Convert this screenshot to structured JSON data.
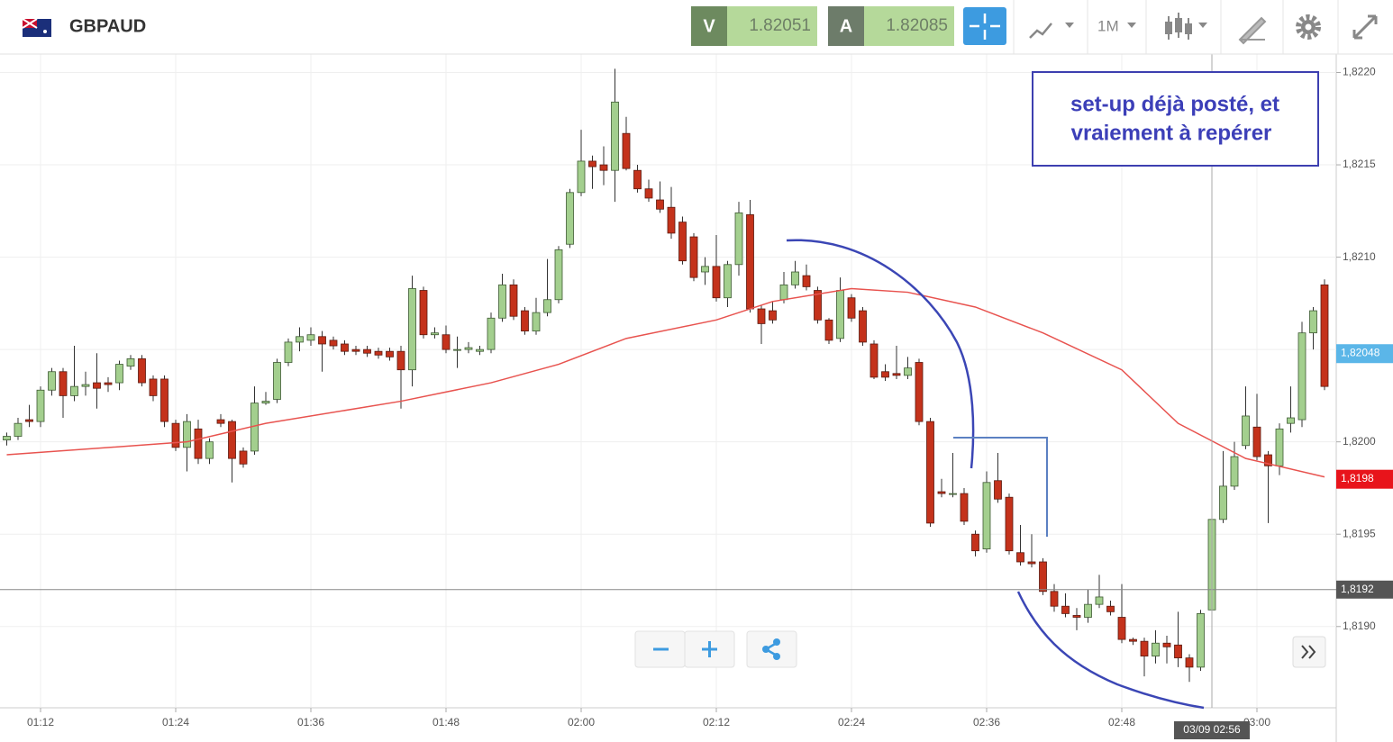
{
  "toolbar": {
    "symbol": "GBPAUD",
    "sell_label": "V",
    "sell_price": "1.82051",
    "buy_label": "A",
    "buy_price": "1.82085",
    "timeframe": "1M"
  },
  "chart_data": {
    "type": "candlestick",
    "categories": [
      "01:09",
      "01:10",
      "01:11",
      "01:12",
      "01:13",
      "01:14",
      "01:15",
      "01:16",
      "01:17",
      "01:18",
      "01:19",
      "01:20",
      "01:21",
      "01:22",
      "01:23",
      "01:24",
      "01:25",
      "01:26",
      "01:27",
      "01:28",
      "01:29",
      "01:30",
      "01:31",
      "01:32",
      "01:33",
      "01:34",
      "01:35",
      "01:36",
      "01:37",
      "01:38",
      "01:39",
      "01:40",
      "01:41",
      "01:42",
      "01:43",
      "01:44",
      "01:45",
      "01:46",
      "01:47",
      "01:48",
      "01:49",
      "01:50",
      "01:51",
      "01:52",
      "01:53",
      "01:54",
      "01:55",
      "01:56",
      "01:57",
      "01:58",
      "01:59",
      "02:00",
      "02:01",
      "02:02",
      "02:03",
      "02:04",
      "02:05",
      "02:06",
      "02:07",
      "02:08",
      "02:09",
      "02:10",
      "02:11",
      "02:12",
      "02:13",
      "02:14",
      "02:15",
      "02:16",
      "02:17",
      "02:18",
      "02:19",
      "02:20",
      "02:21",
      "02:22",
      "02:23",
      "02:24",
      "02:25",
      "02:26",
      "02:27",
      "02:28",
      "02:29",
      "02:30",
      "02:31",
      "02:32",
      "02:33",
      "02:34",
      "02:35",
      "02:36",
      "02:37",
      "02:38",
      "02:39",
      "02:40",
      "02:41",
      "02:42",
      "02:43",
      "02:44",
      "02:45",
      "02:46",
      "02:47",
      "02:48",
      "02:49",
      "02:50",
      "02:51",
      "02:52",
      "02:53",
      "02:54",
      "02:55",
      "02:56",
      "02:57",
      "02:58",
      "02:59",
      "03:00",
      "03:01",
      "03:02",
      "03:03",
      "03:04",
      "03:05",
      "03:06"
    ],
    "open": [
      1.82001,
      1.82003,
      1.82012,
      1.82011,
      1.82028,
      1.82038,
      1.82025,
      1.8203,
      1.82032,
      1.82032,
      1.82032,
      1.82041,
      1.82045,
      1.82034,
      1.82034,
      1.8201,
      1.81997,
      1.82007,
      1.81991,
      1.82012,
      1.82011,
      1.81995,
      1.81995,
      1.82021,
      1.82023,
      1.82043,
      1.82054,
      1.82055,
      1.82057,
      1.82055,
      1.82053,
      1.8205,
      1.8205,
      1.82049,
      1.82049,
      1.82049,
      1.82039,
      1.82082,
      1.82058,
      1.82058,
      1.8205,
      1.8205,
      1.82049,
      1.8205,
      1.82067,
      1.82085,
      1.82071,
      1.8206,
      1.8207,
      1.82077,
      1.82107,
      1.82135,
      1.82152,
      1.8215,
      1.82147,
      1.82167,
      1.82147,
      1.82137,
      1.82131,
      1.82127,
      1.82119,
      1.82111,
      1.82092,
      1.82095,
      1.82078,
      1.82096,
      1.82123,
      1.82072,
      1.82071,
      1.82077,
      1.82085,
      1.8209,
      1.82082,
      1.82066,
      1.82056,
      1.82078,
      1.82071,
      1.82053,
      1.82038,
      1.82037,
      1.82036,
      1.82043,
      1.82011,
      1.81973,
      1.81972,
      1.81972,
      1.8195,
      1.81942,
      1.81979,
      1.8197,
      1.8194,
      1.81935,
      1.81935,
      1.81919,
      1.81911,
      1.81906,
      1.81905,
      1.81912,
      1.81911,
      1.81905,
      1.81893,
      1.81892,
      1.81884,
      1.81891,
      1.8189,
      1.81883,
      1.81878,
      1.81909,
      1.81958,
      1.81976,
      1.81998,
      1.82008,
      1.81993,
      1.81987,
      1.8201,
      1.82012,
      1.82059,
      1.82085
    ],
    "high": [
      1.82005,
      1.82013,
      1.8202,
      1.8203,
      1.8204,
      1.8204,
      1.82052,
      1.82038,
      1.82048,
      1.82035,
      1.82044,
      1.82047,
      1.82047,
      1.82036,
      1.82036,
      1.82012,
      1.82015,
      1.82012,
      1.82002,
      1.82015,
      1.82012,
      1.81997,
      1.8203,
      1.82027,
      1.82045,
      1.82056,
      1.82062,
      1.82062,
      1.8206,
      1.82057,
      1.82055,
      1.82052,
      1.82052,
      1.82051,
      1.82051,
      1.82052,
      1.8209,
      1.82084,
      1.82062,
      1.82063,
      1.82057,
      1.82054,
      1.82052,
      1.8207,
      1.82091,
      1.82088,
      1.82073,
      1.82078,
      1.82099,
      1.82106,
      1.82137,
      1.82169,
      1.82155,
      1.8216,
      1.82202,
      1.82176,
      1.8215,
      1.82142,
      1.82141,
      1.82138,
      1.82122,
      1.82113,
      1.821,
      1.82112,
      1.82098,
      1.8213,
      1.82131,
      1.82074,
      1.82076,
      1.82092,
      1.82098,
      1.82096,
      1.82084,
      1.82067,
      1.82089,
      1.8208,
      1.82073,
      1.82055,
      1.82042,
      1.82052,
      1.82046,
      1.82045,
      1.82013,
      1.8198,
      1.81994,
      1.81975,
      1.81952,
      1.81984,
      1.81994,
      1.81972,
      1.81955,
      1.8195,
      1.81937,
      1.81923,
      1.81918,
      1.8191,
      1.8192,
      1.81928,
      1.81914,
      1.81923,
      1.81894,
      1.81894,
      1.81898,
      1.81895,
      1.81908,
      1.81885,
      1.81909,
      1.8196,
      1.81995,
      1.82,
      1.8203,
      1.82026,
      1.81995,
      1.8201,
      1.8203,
      1.82065,
      1.82073,
      1.82088
    ],
    "low": [
      1.81998,
      1.82001,
      1.82008,
      1.82008,
      1.82025,
      1.82013,
      1.82022,
      1.82025,
      1.82018,
      1.82027,
      1.82028,
      1.82039,
      1.8203,
      1.82022,
      1.82008,
      1.81995,
      1.81984,
      1.81988,
      1.81988,
      1.82008,
      1.81978,
      1.81986,
      1.81993,
      1.8202,
      1.82021,
      1.82041,
      1.82049,
      1.82052,
      1.82038,
      1.8205,
      1.82047,
      1.82047,
      1.82046,
      1.82045,
      1.82044,
      1.82018,
      1.8203,
      1.82056,
      1.82056,
      1.82048,
      1.8204,
      1.82048,
      1.82047,
      1.82048,
      1.82065,
      1.82066,
      1.82058,
      1.82058,
      1.82068,
      1.82075,
      1.82105,
      1.82133,
      1.82137,
      1.82139,
      1.8213,
      1.82147,
      1.82135,
      1.8213,
      1.82124,
      1.8211,
      1.82096,
      1.82087,
      1.82085,
      1.82076,
      1.82073,
      1.8209,
      1.8207,
      1.82053,
      1.82064,
      1.82075,
      1.82083,
      1.82082,
      1.82064,
      1.82053,
      1.82054,
      1.82065,
      1.82052,
      1.82034,
      1.82033,
      1.82034,
      1.82034,
      1.82009,
      1.81954,
      1.8197,
      1.8197,
      1.81955,
      1.81938,
      1.8194,
      1.81967,
      1.81939,
      1.81933,
      1.81932,
      1.81917,
      1.81908,
      1.81905,
      1.81898,
      1.81902,
      1.8191,
      1.81906,
      1.81891,
      1.8189,
      1.81873,
      1.8188,
      1.8188,
      1.81878,
      1.8187,
      1.81876,
      1.81906,
      1.81956,
      1.81974,
      1.81996,
      1.8199,
      1.81956,
      1.81982,
      1.82005,
      1.82008,
      1.8205,
      1.82028
    ],
    "close": [
      1.82003,
      1.8201,
      1.82011,
      1.82028,
      1.82038,
      1.82025,
      1.8203,
      1.82031,
      1.82029,
      1.82031,
      1.82042,
      1.82045,
      1.82032,
      1.82025,
      1.82011,
      1.81997,
      1.82011,
      1.81991,
      1.82,
      1.8201,
      1.81991,
      1.81988,
      1.82021,
      1.82022,
      1.82043,
      1.82054,
      1.82057,
      1.82058,
      1.82053,
      1.82052,
      1.82049,
      1.82049,
      1.82048,
      1.82047,
      1.82046,
      1.82039,
      1.82083,
      1.82058,
      1.82059,
      1.8205,
      1.8205,
      1.82051,
      1.8205,
      1.82067,
      1.82085,
      1.82068,
      1.8206,
      1.8207,
      1.82077,
      1.82104,
      1.82135,
      1.82152,
      1.82149,
      1.82147,
      1.82184,
      1.82148,
      1.82137,
      1.82132,
      1.82126,
      1.82113,
      1.82098,
      1.82089,
      1.82095,
      1.82078,
      1.82096,
      1.82124,
      1.82072,
      1.82064,
      1.82066,
      1.82085,
      1.82092,
      1.82084,
      1.82066,
      1.82055,
      1.82082,
      1.82067,
      1.82054,
      1.82035,
      1.82035,
      1.82036,
      1.8204,
      1.82011,
      1.81956,
      1.81972,
      1.81972,
      1.81957,
      1.81941,
      1.81978,
      1.81969,
      1.81941,
      1.81935,
      1.81934,
      1.81919,
      1.81911,
      1.81907,
      1.81905,
      1.81912,
      1.81916,
      1.81908,
      1.81893,
      1.81892,
      1.81884,
      1.81891,
      1.81889,
      1.81883,
      1.81878,
      1.81907,
      1.81958,
      1.81976,
      1.81992,
      1.82014,
      1.81992,
      1.81987,
      1.82007,
      1.82013,
      1.82059,
      1.82071,
      1.8203
    ],
    "up_color": "#a3cf8e",
    "down_color": "#c4321b",
    "moving_average": {
      "color": "#e8534f",
      "x": [
        "01:09",
        "01:25",
        "01:32",
        "01:44",
        "01:52",
        "01:58",
        "02:04",
        "02:12",
        "02:17",
        "02:24",
        "02:29",
        "02:35",
        "02:41",
        "02:48",
        "02:53",
        "02:59",
        "03:06"
      ],
      "values": [
        1.81993,
        1.82,
        1.8201,
        1.82022,
        1.82032,
        1.82042,
        1.82056,
        1.82066,
        1.82076,
        1.82083,
        1.82081,
        1.82073,
        1.82059,
        1.82039,
        1.8201,
        1.81991,
        1.81981
      ]
    },
    "ylim": [
      1.81856,
      1.8221
    ],
    "yticks": [
      {
        "value": 1.819,
        "label": "1,8190"
      },
      {
        "value": 1.8195,
        "label": "1,8195"
      },
      {
        "value": 1.82,
        "label": "1,8200"
      },
      {
        "value": 1.8205,
        "label": "1,8205"
      },
      {
        "value": 1.821,
        "label": "1,8210"
      },
      {
        "value": 1.8215,
        "label": "1,8215"
      },
      {
        "value": 1.822,
        "label": "1,8220"
      }
    ],
    "xticks": [
      "01:12",
      "01:24",
      "01:36",
      "01:48",
      "02:00",
      "02:12",
      "02:24",
      "02:36",
      "02:48",
      "03:00"
    ],
    "grid": true,
    "price_tags": [
      {
        "value": 1.82048,
        "label": "1,82048",
        "color": "#5bb6e8"
      },
      {
        "value": 1.8198,
        "label": "1,8198",
        "color": "#e8141b"
      }
    ],
    "crosshair": {
      "value": 1.8192,
      "label": "1,8192",
      "time": "02:56",
      "time_label": "03/09 02:56"
    },
    "annotation": [
      "set-up déjà posté, et",
      "vraiement à repérer"
    ]
  }
}
